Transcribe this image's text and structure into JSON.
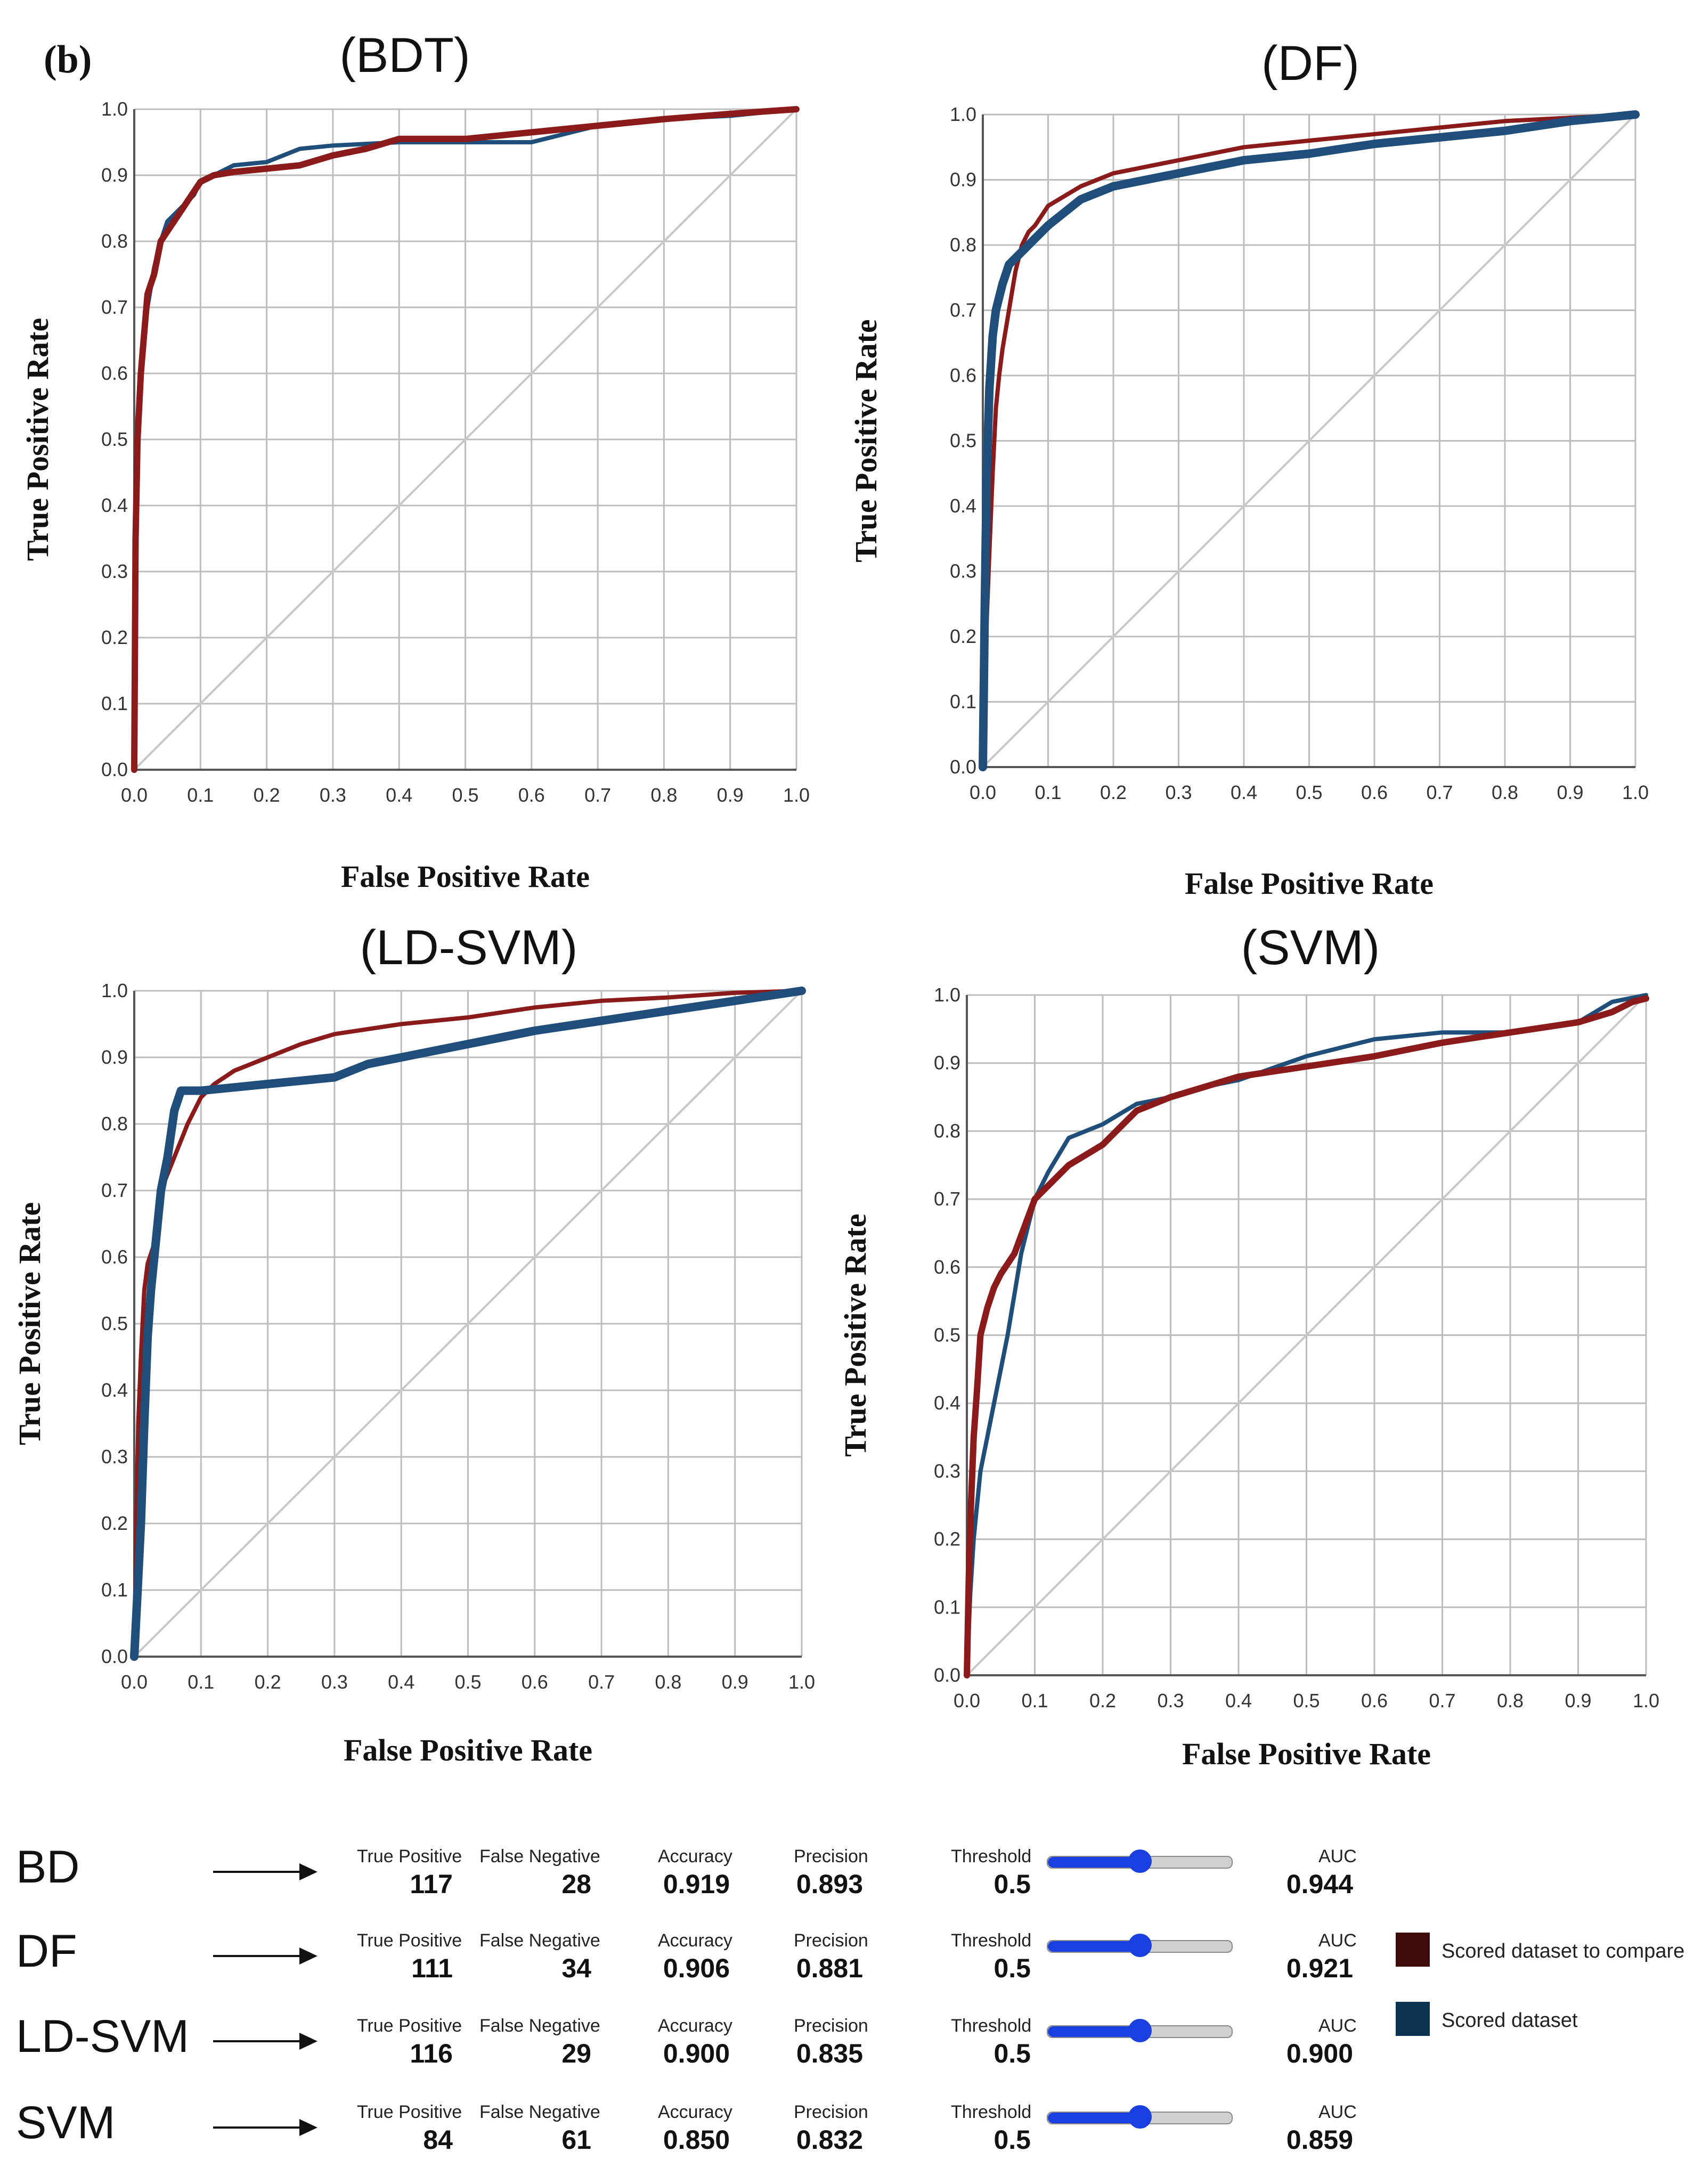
{
  "figure_label": "(b)",
  "colors": {
    "compare": "#8b1a1a",
    "scored": "#1f4e7a",
    "grid": "#bdbdbd",
    "diagonal": "#c8c8c8",
    "slider": "#1a3fe0"
  },
  "legend": {
    "compare_label": "Scored dataset to compare",
    "scored_label": "Scored dataset",
    "compare_color": "#3d0a0a",
    "scored_color": "#0d3352"
  },
  "chart_data": [
    {
      "type": "line",
      "title": "(BDT)",
      "xlabel": "False Positive Rate",
      "ylabel": "True Positive Rate",
      "xlim": [
        0,
        1
      ],
      "ylim": [
        0,
        1
      ],
      "ticks": [
        "0.0",
        "0.1",
        "0.2",
        "0.3",
        "0.4",
        "0.5",
        "0.6",
        "0.7",
        "0.8",
        "0.9",
        "1.0"
      ],
      "grid": true,
      "series": [
        {
          "role": "scored",
          "x": [
            0,
            0.002,
            0.005,
            0.01,
            0.015,
            0.02,
            0.03,
            0.04,
            0.05,
            0.07,
            0.09,
            0.1,
            0.12,
            0.15,
            0.2,
            0.25,
            0.3,
            0.4,
            0.5,
            0.6,
            0.7,
            0.8,
            0.9,
            1.0
          ],
          "y": [
            0,
            0.3,
            0.5,
            0.6,
            0.66,
            0.7,
            0.76,
            0.8,
            0.83,
            0.85,
            0.87,
            0.89,
            0.9,
            0.915,
            0.92,
            0.94,
            0.945,
            0.95,
            0.95,
            0.95,
            0.975,
            0.985,
            0.99,
            1.0
          ]
        },
        {
          "role": "compare",
          "x": [
            0,
            0.002,
            0.005,
            0.01,
            0.015,
            0.02,
            0.03,
            0.04,
            0.06,
            0.08,
            0.1,
            0.12,
            0.15,
            0.2,
            0.25,
            0.3,
            0.35,
            0.4,
            0.5,
            0.6,
            0.7,
            0.8,
            0.9,
            1.0
          ],
          "y": [
            0,
            0.35,
            0.5,
            0.6,
            0.66,
            0.72,
            0.75,
            0.8,
            0.83,
            0.86,
            0.89,
            0.9,
            0.905,
            0.91,
            0.915,
            0.93,
            0.94,
            0.955,
            0.955,
            0.965,
            0.975,
            0.985,
            0.993,
            1.0
          ]
        }
      ]
    },
    {
      "type": "line",
      "title": "(DF)",
      "xlabel": "False Positive Rate",
      "ylabel": "True Positive Rate",
      "xlim": [
        0,
        1
      ],
      "ylim": [
        0,
        1
      ],
      "ticks": [
        "0.0",
        "0.1",
        "0.2",
        "0.3",
        "0.4",
        "0.5",
        "0.6",
        "0.7",
        "0.8",
        "0.9",
        "1.0"
      ],
      "grid": true,
      "series": [
        {
          "role": "compare",
          "x": [
            0,
            0.005,
            0.01,
            0.015,
            0.02,
            0.025,
            0.03,
            0.04,
            0.05,
            0.06,
            0.07,
            0.08,
            0.1,
            0.15,
            0.2,
            0.3,
            0.4,
            0.5,
            0.6,
            0.7,
            0.8,
            0.9,
            1.0
          ],
          "y": [
            0,
            0.2,
            0.33,
            0.45,
            0.55,
            0.6,
            0.64,
            0.7,
            0.76,
            0.8,
            0.82,
            0.83,
            0.86,
            0.89,
            0.91,
            0.93,
            0.95,
            0.96,
            0.97,
            0.98,
            0.99,
            0.995,
            1.0
          ]
        },
        {
          "role": "scored",
          "x": [
            0,
            0.003,
            0.006,
            0.01,
            0.015,
            0.02,
            0.03,
            0.04,
            0.06,
            0.08,
            0.1,
            0.15,
            0.2,
            0.3,
            0.4,
            0.5,
            0.6,
            0.7,
            0.8,
            0.9,
            1.0
          ],
          "y": [
            0,
            0.25,
            0.45,
            0.58,
            0.66,
            0.7,
            0.74,
            0.77,
            0.79,
            0.81,
            0.83,
            0.87,
            0.89,
            0.91,
            0.93,
            0.94,
            0.955,
            0.965,
            0.975,
            0.99,
            1.0
          ]
        }
      ]
    },
    {
      "type": "line",
      "title": "(LD-SVM)",
      "xlabel": "False Positive Rate",
      "ylabel": "True Positive Rate",
      "xlim": [
        0,
        1
      ],
      "ylim": [
        0,
        1
      ],
      "ticks": [
        "0.0",
        "0.1",
        "0.2",
        "0.3",
        "0.4",
        "0.5",
        "0.6",
        "0.7",
        "0.8",
        "0.9",
        "1.0"
      ],
      "grid": true,
      "series": [
        {
          "role": "compare",
          "x": [
            0,
            0.003,
            0.006,
            0.01,
            0.015,
            0.02,
            0.03,
            0.04,
            0.06,
            0.08,
            0.1,
            0.12,
            0.15,
            0.2,
            0.25,
            0.3,
            0.4,
            0.5,
            0.6,
            0.7,
            0.8,
            0.9,
            1.0
          ],
          "y": [
            0,
            0.2,
            0.35,
            0.45,
            0.55,
            0.59,
            0.62,
            0.7,
            0.75,
            0.8,
            0.84,
            0.86,
            0.88,
            0.9,
            0.92,
            0.935,
            0.95,
            0.96,
            0.975,
            0.985,
            0.99,
            0.997,
            1.0
          ]
        },
        {
          "role": "scored",
          "x": [
            0,
            0.005,
            0.01,
            0.015,
            0.02,
            0.025,
            0.03,
            0.04,
            0.05,
            0.06,
            0.07,
            0.1,
            0.15,
            0.2,
            0.25,
            0.3,
            0.35,
            0.4,
            0.5,
            0.6,
            0.7,
            0.8,
            0.9,
            1.0
          ],
          "y": [
            0,
            0.1,
            0.2,
            0.35,
            0.48,
            0.55,
            0.6,
            0.7,
            0.75,
            0.82,
            0.85,
            0.85,
            0.855,
            0.86,
            0.865,
            0.87,
            0.89,
            0.9,
            0.92,
            0.94,
            0.955,
            0.97,
            0.985,
            1.0
          ]
        }
      ]
    },
    {
      "type": "line",
      "title": "(SVM)",
      "xlabel": "False Positive Rate",
      "ylabel": "True Positive Rate",
      "xlim": [
        0,
        1
      ],
      "ylim": [
        0,
        1
      ],
      "ticks": [
        "0.0",
        "0.1",
        "0.2",
        "0.3",
        "0.4",
        "0.5",
        "0.6",
        "0.7",
        "0.8",
        "0.9",
        "1.0"
      ],
      "grid": true,
      "series": [
        {
          "role": "scored",
          "x": [
            0,
            0.005,
            0.01,
            0.015,
            0.02,
            0.03,
            0.04,
            0.05,
            0.06,
            0.07,
            0.08,
            0.1,
            0.12,
            0.15,
            0.2,
            0.25,
            0.3,
            0.35,
            0.4,
            0.5,
            0.6,
            0.7,
            0.8,
            0.9,
            0.95,
            1.0
          ],
          "y": [
            0,
            0.12,
            0.2,
            0.25,
            0.3,
            0.35,
            0.4,
            0.45,
            0.5,
            0.56,
            0.62,
            0.7,
            0.74,
            0.79,
            0.81,
            0.84,
            0.85,
            0.865,
            0.875,
            0.91,
            0.935,
            0.945,
            0.945,
            0.96,
            0.99,
            1.0
          ]
        },
        {
          "role": "compare",
          "x": [
            0,
            0.003,
            0.006,
            0.01,
            0.015,
            0.02,
            0.03,
            0.04,
            0.05,
            0.07,
            0.1,
            0.12,
            0.15,
            0.2,
            0.25,
            0.3,
            0.4,
            0.5,
            0.6,
            0.7,
            0.8,
            0.9,
            0.95,
            0.98,
            1.0
          ],
          "y": [
            0,
            0.15,
            0.25,
            0.35,
            0.42,
            0.5,
            0.54,
            0.57,
            0.59,
            0.62,
            0.7,
            0.72,
            0.75,
            0.78,
            0.83,
            0.85,
            0.88,
            0.895,
            0.91,
            0.93,
            0.945,
            0.96,
            0.975,
            0.99,
            0.995
          ]
        }
      ]
    }
  ],
  "metrics": {
    "labels": {
      "true_positive": "True Positive",
      "false_negative": "False Negative",
      "accuracy": "Accuracy",
      "precision": "Precision",
      "threshold": "Threshold",
      "auc": "AUC"
    },
    "rows": [
      {
        "name": "BD",
        "true_positive": "117",
        "false_negative": "28",
        "accuracy": "0.919",
        "precision": "0.893",
        "threshold": "0.5",
        "threshold_value": 0.5,
        "auc": "0.944"
      },
      {
        "name": "DF",
        "true_positive": "111",
        "false_negative": "34",
        "accuracy": "0.906",
        "precision": "0.881",
        "threshold": "0.5",
        "threshold_value": 0.5,
        "auc": "0.921"
      },
      {
        "name": "LD-SVM",
        "true_positive": "116",
        "false_negative": "29",
        "accuracy": "0.900",
        "precision": "0.835",
        "threshold": "0.5",
        "threshold_value": 0.5,
        "auc": "0.900"
      },
      {
        "name": "SVM",
        "true_positive": "84",
        "false_negative": "61",
        "accuracy": "0.850",
        "precision": "0.832",
        "threshold": "0.5",
        "threshold_value": 0.5,
        "auc": "0.859"
      }
    ]
  }
}
